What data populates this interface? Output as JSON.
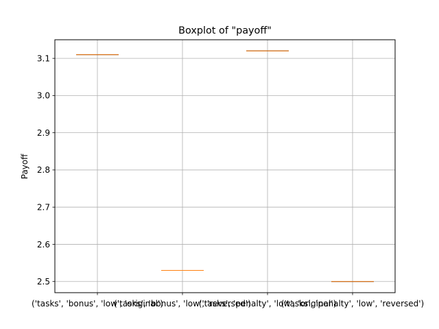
{
  "chart_data": {
    "type": "box",
    "title": "Boxplot of \"payoff\"",
    "xlabel": "",
    "ylabel": "Payoff",
    "categories": [
      "('tasks', 'bonus', 'low', 'original')",
      "('tasks', 'bonus', 'low', 'reversed')",
      "('tasks', 'penalty', 'low', 'original')",
      "('tasks', 'penalty', 'low', 'reversed')"
    ],
    "values": [
      3.11,
      2.53,
      3.12,
      2.5
    ],
    "ylim": [
      2.47,
      3.15
    ],
    "yticks": [
      2.5,
      2.6,
      2.7,
      2.8,
      2.9,
      3.0,
      3.1
    ],
    "ytick_labels": [
      "2.5",
      "2.6",
      "2.7",
      "2.8",
      "2.9",
      "3.0",
      "3.1"
    ],
    "grid": true,
    "colors": {
      "box": "#000000",
      "median": "#ff7f0e",
      "grid": "#b0b0b0"
    }
  }
}
